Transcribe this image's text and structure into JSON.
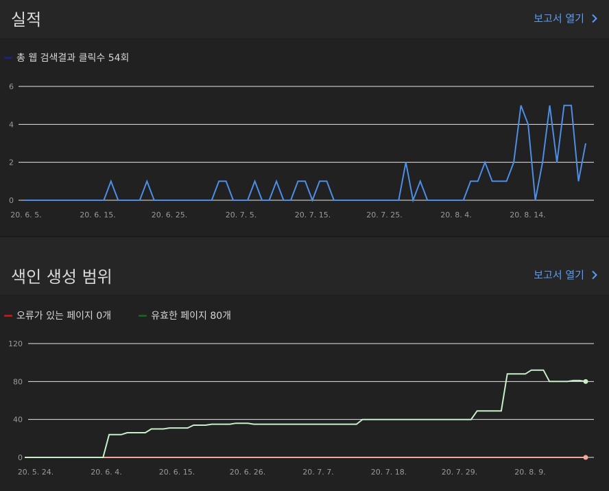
{
  "performance": {
    "title": "실적",
    "report_link": "보고서 열기",
    "legend": [
      {
        "label": "총 웹 검색결과 클릭수 54회",
        "color": "#1a237e"
      }
    ],
    "chart_data": {
      "type": "line",
      "yticks": [
        0,
        2,
        4,
        6
      ],
      "ylim": [
        0,
        6
      ],
      "xticks": [
        "20. 6. 5.",
        "20. 6. 15.",
        "20. 6. 25.",
        "20. 7. 5.",
        "20. 7. 15.",
        "20. 7. 25.",
        "20. 8. 4.",
        "20. 8. 14."
      ],
      "series": [
        {
          "color": "#4d8ee8",
          "values": [
            0,
            0,
            0,
            0,
            0,
            0,
            0,
            0,
            0,
            0,
            0,
            0,
            1,
            0,
            0,
            0,
            0,
            1,
            0,
            0,
            0,
            0,
            0,
            0,
            0,
            0,
            0,
            1,
            1,
            0,
            0,
            0,
            1,
            0,
            0,
            1,
            0,
            0,
            1,
            1,
            0,
            1,
            1,
            0,
            0,
            0,
            0,
            0,
            0,
            0,
            0,
            0,
            0,
            2,
            0,
            1,
            0,
            0,
            0,
            0,
            0,
            0,
            1,
            1,
            2,
            1,
            1,
            1,
            2,
            5,
            4,
            0,
            2,
            5,
            2,
            5,
            5,
            1,
            3
          ]
        }
      ]
    }
  },
  "coverage": {
    "title": "색인 생성 범위",
    "report_link": "보고서 열기",
    "legend": [
      {
        "label": "오류가 있는 페이지 0개",
        "color": "#b71c1c"
      },
      {
        "label": "유효한 페이지 80개",
        "color": "#1b5e20"
      }
    ],
    "chart_data": {
      "type": "line",
      "yticks": [
        0,
        40,
        80,
        120
      ],
      "ylim": [
        0,
        120
      ],
      "xticks": [
        "20. 5. 24.",
        "20. 6. 4.",
        "20. 6. 15.",
        "20. 6. 26.",
        "20. 7. 7.",
        "20. 7. 18.",
        "20. 7. 29.",
        "20. 8. 9."
      ],
      "series": [
        {
          "color": "#f4a89a",
          "values": [
            0,
            0,
            0,
            0,
            0,
            0,
            0,
            0,
            0,
            0,
            0,
            0,
            0,
            0,
            0,
            0,
            0,
            0,
            0,
            0,
            0,
            0,
            0,
            0,
            0,
            0,
            0,
            0,
            0,
            0,
            0,
            0,
            0,
            0,
            0,
            0,
            0,
            0,
            0,
            0,
            0,
            0,
            0,
            0,
            0,
            0,
            0,
            0,
            0,
            0,
            0,
            0,
            0,
            0,
            0,
            0,
            0,
            0,
            0,
            0,
            0,
            0,
            0,
            0,
            0,
            0,
            0,
            0,
            0,
            0,
            0,
            0,
            0,
            0,
            0,
            0,
            0,
            0,
            0,
            0,
            0,
            0,
            0,
            0,
            0,
            0
          ]
        },
        {
          "color": "#c8f0c8",
          "values": [
            0,
            0,
            0,
            0,
            0,
            0,
            0,
            0,
            0,
            0,
            0,
            0,
            0,
            0,
            24,
            24,
            24,
            26,
            26,
            26,
            26,
            30,
            30,
            30,
            31,
            31,
            31,
            31,
            34,
            34,
            34,
            35,
            35,
            35,
            35,
            36,
            36,
            36,
            35,
            35,
            35,
            35,
            35,
            35,
            35,
            35,
            35,
            35,
            35,
            35,
            35,
            35,
            35,
            35,
            35,
            35,
            40,
            40,
            40,
            40,
            40,
            40,
            40,
            40,
            40,
            40,
            40,
            40,
            40,
            40,
            40,
            40,
            40,
            40,
            40,
            49,
            49,
            49,
            49,
            49,
            88,
            88,
            88,
            88,
            92,
            92,
            92,
            80,
            80,
            80,
            80,
            81,
            81,
            80
          ]
        }
      ]
    }
  }
}
